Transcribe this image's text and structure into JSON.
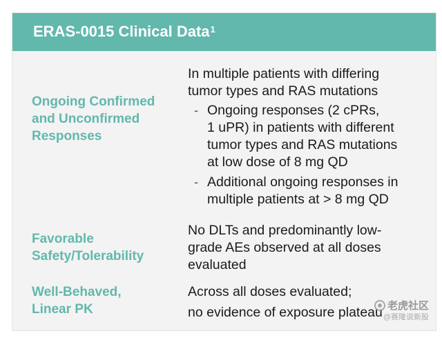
{
  "header": {
    "title": "ERAS-0015 Clinical Data",
    "footnote": "1"
  },
  "rows": [
    {
      "label_lines": [
        "Ongoing Confirmed",
        "and Unconfirmed",
        "Responses"
      ],
      "intro_lines": [
        "In multiple patients with differing",
        "tumor types and RAS mutations"
      ],
      "bullets": [
        {
          "marker": "-",
          "lines": [
            "Ongoing responses (2 cPRs,",
            "1 uPR) in patients with different",
            "tumor types and RAS mutations",
            "at low dose of 8 mg QD"
          ]
        },
        {
          "marker": "-",
          "lines": [
            "Additional ongoing responses in",
            "multiple patients at > 8 mg QD"
          ]
        }
      ]
    },
    {
      "label_lines": [
        "Favorable",
        "Safety/Tolerability"
      ],
      "intro_lines": [
        "No DLTs and predominantly low-",
        "grade AEs observed at all doses",
        "evaluated"
      ]
    },
    {
      "label_lines": [
        "Well-Behaved,",
        "Linear PK"
      ],
      "intro_lines": [
        "Across all doses evaluated;",
        "no evidence of exposure plateau"
      ]
    }
  ],
  "watermark": {
    "logo_icon": "tiger-community-logo-icon",
    "main": "老虎社区",
    "sub": "@赛隆说新股"
  },
  "colors": {
    "header_bg": "#62b8ac",
    "label_text": "#62b8ac",
    "body_text": "#1a1a1a",
    "slide_bg": "#f3f3f3"
  }
}
